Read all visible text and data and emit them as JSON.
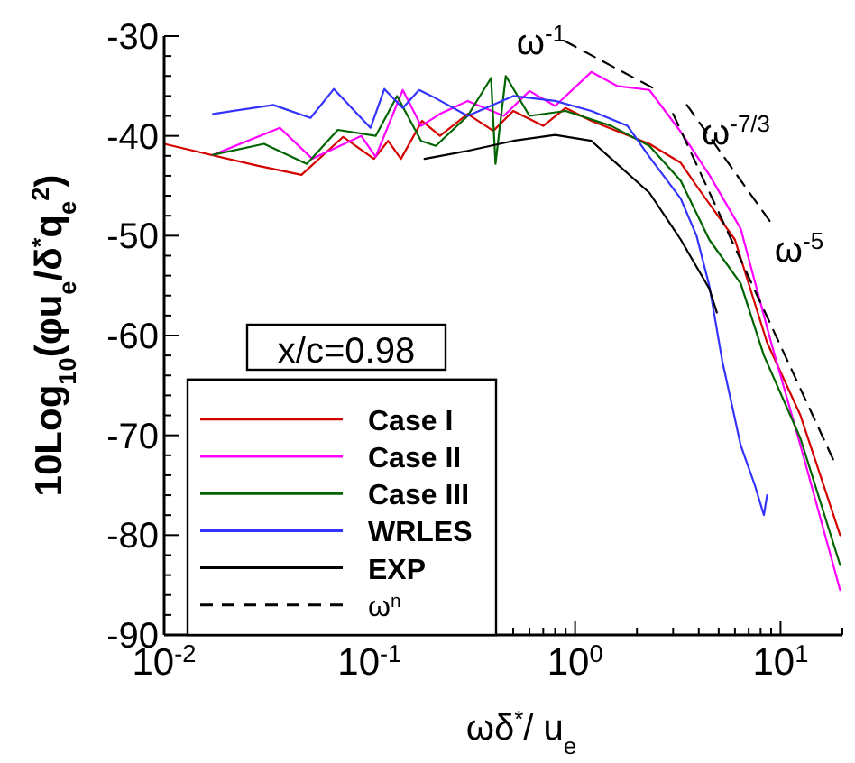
{
  "chart_data": {
    "type": "line",
    "xlabel": "ωδ$^{*}$/ u$_{e}$",
    "ylabel": "10Log$_{10}$(φu$_{e}$/δ$^{*}$q$_{e}$$^{2}$)",
    "log": "x",
    "xlim": [
      0.01,
      20
    ],
    "ylim": [
      -90,
      -30
    ],
    "xticks": [
      {
        "value": 0.01,
        "label": "10$^{-2}$"
      },
      {
        "value": 0.02,
        "label": null
      },
      {
        "value": 0.03,
        "label": null
      },
      {
        "value": 0.04,
        "label": null
      },
      {
        "value": 0.05,
        "label": null
      },
      {
        "value": 0.06,
        "label": null
      },
      {
        "value": 0.07,
        "label": null
      },
      {
        "value": 0.08,
        "label": null
      },
      {
        "value": 0.09,
        "label": null
      },
      {
        "value": 0.1,
        "label": "10$^{-1}$"
      },
      {
        "value": 0.2,
        "label": null
      },
      {
        "value": 0.3,
        "label": null
      },
      {
        "value": 0.4,
        "label": null
      },
      {
        "value": 0.5,
        "label": null
      },
      {
        "value": 0.6,
        "label": null
      },
      {
        "value": 0.7,
        "label": null
      },
      {
        "value": 0.8,
        "label": null
      },
      {
        "value": 0.9,
        "label": null
      },
      {
        "value": 1,
        "label": "10$^{0}$"
      },
      {
        "value": 2,
        "label": null
      },
      {
        "value": 3,
        "label": null
      },
      {
        "value": 4,
        "label": null
      },
      {
        "value": 5,
        "label": null
      },
      {
        "value": 6,
        "label": null
      },
      {
        "value": 7,
        "label": null
      },
      {
        "value": 8,
        "label": null
      },
      {
        "value": 9,
        "label": null
      },
      {
        "value": 10,
        "label": "10$^{1}$"
      },
      {
        "value": 20,
        "label": null
      }
    ],
    "yticks": [
      -90,
      {
        "value": -88,
        "label": null
      },
      {
        "value": -86,
        "label": null
      },
      {
        "value": -84,
        "label": null
      },
      {
        "value": -82,
        "label": null
      },
      -80,
      {
        "value": -78,
        "label": null
      },
      {
        "value": -76,
        "label": null
      },
      {
        "value": -74,
        "label": null
      },
      {
        "value": -72,
        "label": null
      },
      -70,
      {
        "value": -68,
        "label": null
      },
      {
        "value": -66,
        "label": null
      },
      {
        "value": -64,
        "label": null
      },
      {
        "value": -62,
        "label": null
      },
      -60,
      {
        "value": -58,
        "label": null
      },
      {
        "value": -56,
        "label": null
      },
      {
        "value": -54,
        "label": null
      },
      {
        "value": -52,
        "label": null
      },
      -50,
      {
        "value": -48,
        "label": null
      },
      {
        "value": -46,
        "label": null
      },
      {
        "value": -44,
        "label": null
      },
      {
        "value": -42,
        "label": null
      },
      -40,
      {
        "value": -38,
        "label": null
      },
      {
        "value": -36,
        "label": null
      },
      {
        "value": -34,
        "label": null
      },
      {
        "value": -32,
        "label": null
      },
      -30
    ],
    "grid": false,
    "legend": "bottom left",
    "line_style": "solid",
    "annotations": [
      "x/c=0.98",
      "ω$^{-1}$",
      "ω$^{-7/3}$",
      "ω$^{-5}$"
    ],
    "series": [
      {
        "name": "Case I",
        "color": "#d40000",
        "x": [
          0.01,
          0.0287,
          0.0466,
          0.0743,
          0.105,
          0.123,
          0.142,
          0.18,
          0.22,
          0.3,
          0.4,
          0.5,
          0.7,
          0.9,
          1.2,
          1.64,
          2.3,
          3.27,
          3.9,
          6.0,
          8.6,
          12.5,
          19.5
        ],
        "values": [
          -40.8,
          -43.0,
          -43.9,
          -40.1,
          -42.3,
          -40.5,
          -42.3,
          -38.5,
          -40,
          -37.8,
          -39.5,
          -37.5,
          -39,
          -37.2,
          -38.5,
          -39.6,
          -40.8,
          -42.7,
          -45,
          -50.4,
          -60.7,
          -68,
          -80
        ]
      },
      {
        "name": "Case II",
        "color": "#ff00ff",
        "x": [
          0.0173,
          0.0366,
          0.0526,
          0.091,
          0.107,
          0.145,
          0.178,
          0.22,
          0.3,
          0.45,
          0.6,
          0.8,
          1.2,
          1.6,
          2.3,
          3.27,
          4.5,
          6.4,
          9.0,
          12.5,
          19.5
        ],
        "values": [
          -41.9,
          -39.2,
          -42.3,
          -40,
          -42.1,
          -35.4,
          -39,
          -37.8,
          -36.5,
          -38,
          -35.5,
          -37,
          -33.6,
          -35,
          -35.4,
          -39.6,
          -43.9,
          -49.3,
          -60.7,
          -71,
          -85.5
        ]
      },
      {
        "name": "Case III",
        "color": "#006400",
        "x": [
          0.0173,
          0.0306,
          0.0495,
          0.07,
          0.107,
          0.136,
          0.178,
          0.21,
          0.3,
          0.39,
          0.41,
          0.46,
          0.6,
          0.9,
          1.5,
          2.3,
          3.27,
          4.5,
          6.4,
          8.3,
          12.5,
          19.5
        ],
        "values": [
          -41.9,
          -40.8,
          -42.8,
          -39.4,
          -40,
          -36,
          -40.5,
          -41,
          -38,
          -34.2,
          -42.8,
          -34,
          -38,
          -37.5,
          -39,
          -41,
          -44.5,
          -50.4,
          -54.8,
          -62,
          -70.3,
          -83
        ]
      },
      {
        "name": "WRLES",
        "color": "#3333ff",
        "x": [
          0.0173,
          0.034,
          0.0516,
          0.067,
          0.101,
          0.118,
          0.145,
          0.174,
          0.2,
          0.3,
          0.5,
          0.8,
          1.2,
          1.8,
          2.3,
          3.27,
          3.9,
          4.5,
          5.2,
          6.4,
          7.5,
          8.3,
          8.6
        ],
        "values": [
          -37.8,
          -36.9,
          -38.2,
          -35.3,
          -39.2,
          -35.3,
          -37.2,
          -35.4,
          -36,
          -38,
          -36,
          -36.5,
          -37.5,
          -39,
          -42.1,
          -46.3,
          -50,
          -55,
          -62.5,
          -71,
          -75,
          -78,
          -76
        ]
      },
      {
        "name": "EXP",
        "color": "#000000",
        "x": [
          0.185,
          0.3,
          0.5,
          0.8,
          1.2,
          1.64,
          2.3,
          3.27,
          4.5,
          4.9
        ],
        "values": [
          -42.3,
          -41.5,
          -40.5,
          -39.9,
          -40.5,
          -43,
          -45.7,
          -50.4,
          -55.3,
          -57.7
        ]
      },
      {
        "name": "ω$^{n}$",
        "color": "#000000",
        "line_style": "dashed",
        "x": [
          0.89,
          2.5
        ],
        "values": [
          -30.5,
          -35.4
        ]
      },
      {
        "color": "#000000",
        "line_style": "dashed",
        "x": [
          3.5,
          9.2
        ],
        "values": [
          -36.9,
          -49
        ]
      },
      {
        "color": "#000000",
        "line_style": "dashed",
        "x": [
          3.0,
          18.5
        ],
        "values": [
          -37.8,
          -72.9
        ]
      }
    ]
  }
}
